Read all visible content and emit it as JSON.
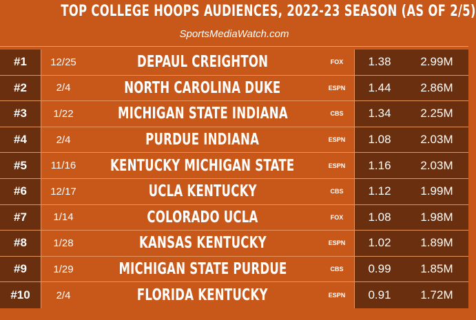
{
  "header": {
    "title": "TOP COLLEGE HOOPS AUDIENCES, 2022-23 SEASON (AS OF 2/5)",
    "source": "SportsMediaWatch.com"
  },
  "rows": [
    {
      "rank": "#1",
      "date": "12/25",
      "matchup": "DEPAUL CREIGHTON",
      "network": "FOX",
      "rating": "1.38",
      "viewers": "2.99M"
    },
    {
      "rank": "#2",
      "date": "2/4",
      "matchup": "NORTH CAROLINA DUKE",
      "network": "ESPN",
      "rating": "1.44",
      "viewers": "2.86M"
    },
    {
      "rank": "#3",
      "date": "1/22",
      "matchup": "MICHIGAN STATE INDIANA",
      "network": "CBS",
      "rating": "1.34",
      "viewers": "2.25M"
    },
    {
      "rank": "#4",
      "date": "2/4",
      "matchup": "PURDUE INDIANA",
      "network": "ESPN",
      "rating": "1.08",
      "viewers": "2.03M"
    },
    {
      "rank": "#5",
      "date": "11/16",
      "matchup": "KENTUCKY MICHIGAN STATE",
      "network": "ESPN",
      "rating": "1.16",
      "viewers": "2.03M"
    },
    {
      "rank": "#6",
      "date": "12/17",
      "matchup": "UCLA KENTUCKY",
      "network": "CBS",
      "rating": "1.12",
      "viewers": "1.99M"
    },
    {
      "rank": "#7",
      "date": "1/14",
      "matchup": "COLORADO UCLA",
      "network": "FOX",
      "rating": "1.08",
      "viewers": "1.98M"
    },
    {
      "rank": "#8",
      "date": "1/28",
      "matchup": "KANSAS KENTUCKY",
      "network": "ESPN",
      "rating": "1.02",
      "viewers": "1.89M"
    },
    {
      "rank": "#9",
      "date": "1/29",
      "matchup": "MICHIGAN STATE PURDUE",
      "network": "CBS",
      "rating": "0.99",
      "viewers": "1.85M"
    },
    {
      "rank": "#10",
      "date": "2/4",
      "matchup": "FLORIDA KENTUCKY",
      "network": "ESPN",
      "rating": "0.91",
      "viewers": "1.72M"
    }
  ]
}
